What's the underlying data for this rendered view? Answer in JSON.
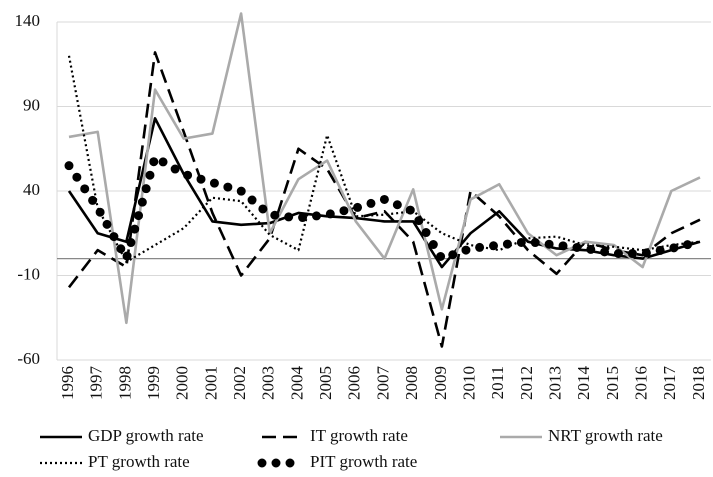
{
  "chart_data": {
    "type": "line",
    "categories": [
      "1996",
      "1997",
      "1998",
      "1999",
      "2000",
      "2001",
      "2002",
      "2003",
      "2004",
      "2005",
      "2006",
      "2007",
      "2008",
      "2009",
      "2010",
      "2011",
      "2012",
      "2013",
      "2014",
      "2015",
      "2016",
      "2017",
      "2018"
    ],
    "ylim": [
      -60,
      140
    ],
    "yticks": [
      -60,
      -10,
      40,
      90,
      140
    ],
    "grid": true,
    "series": [
      {
        "name": "GDP growth rate",
        "color": "#000000",
        "dash": "solid",
        "values": [
          40,
          15,
          10,
          83,
          50,
          22,
          20,
          21,
          27,
          25,
          24,
          22,
          22,
          -5,
          15,
          28,
          10,
          6,
          5,
          2,
          0,
          5,
          10
        ]
      },
      {
        "name": "IT growth rate",
        "color": "#000000",
        "dash": "dashed",
        "values": [
          -17,
          5,
          -5,
          122,
          75,
          27,
          -10,
          12,
          65,
          53,
          24,
          28,
          10,
          -52,
          40,
          25,
          5,
          -9,
          10,
          5,
          2,
          15,
          23
        ]
      },
      {
        "name": "NRT growth rate",
        "color": "#aaaaaa",
        "dash": "solid",
        "values": [
          72,
          75,
          -38,
          100,
          71,
          74,
          145,
          15,
          47,
          58,
          22,
          0,
          41,
          -30,
          35,
          44,
          15,
          2,
          10,
          8,
          -5,
          40,
          48
        ]
      },
      {
        "name": "PT growth rate",
        "color": "#000000",
        "dash": "dotted",
        "values": [
          120,
          30,
          -2,
          8,
          18,
          36,
          34,
          14,
          5,
          73,
          25,
          26,
          28,
          15,
          8,
          5,
          12,
          13,
          8,
          7,
          5,
          8,
          10
        ]
      },
      {
        "name": "PIT growth rate",
        "color": "#000000",
        "dash": "round-dots",
        "values": [
          55,
          30,
          0,
          60,
          50,
          45,
          40,
          26,
          24,
          26,
          30,
          35,
          28,
          0,
          6,
          8,
          10,
          8,
          6,
          3,
          3,
          6,
          10
        ]
      }
    ]
  }
}
